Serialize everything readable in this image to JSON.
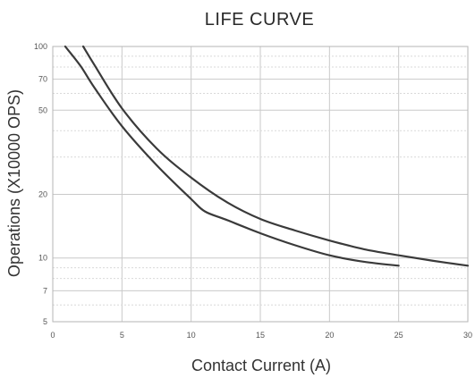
{
  "chart_data": {
    "type": "line",
    "title": "LIFE CURVE",
    "xlabel": "Contact Current (A)",
    "ylabel": "Operations (X10000 OPS)",
    "xlim": [
      0,
      30
    ],
    "ylim": [
      5,
      100
    ],
    "yscale": "log",
    "grid": true,
    "x_ticks": [
      "0",
      "5",
      "10",
      "15",
      "20",
      "25",
      "30"
    ],
    "y_ticks": [
      "5",
      "7",
      "10",
      "20",
      "50",
      "70",
      "100"
    ],
    "x_tick_values": [
      0,
      5,
      10,
      15,
      20,
      25,
      30
    ],
    "y_tick_values": [
      5,
      7,
      10,
      20,
      50,
      70,
      100
    ],
    "series": [
      {
        "x": [
          2.2,
          3,
          5,
          7.5,
          10,
          12.5,
          15,
          17.5,
          20,
          22.5,
          25,
          27.5,
          30
        ],
        "values": [
          100,
          82,
          51,
          33,
          24,
          18.5,
          15.3,
          13.5,
          12.1,
          11,
          10.3,
          9.7,
          9.2
        ]
      },
      {
        "x": [
          0.9,
          2,
          3,
          5,
          7.5,
          10,
          11,
          12.5,
          15,
          17.5,
          20,
          22.5,
          25
        ],
        "values": [
          100,
          81,
          64,
          42,
          27.5,
          19,
          16.6,
          15.2,
          13.1,
          11.5,
          10.3,
          9.6,
          9.2
        ]
      }
    ]
  }
}
